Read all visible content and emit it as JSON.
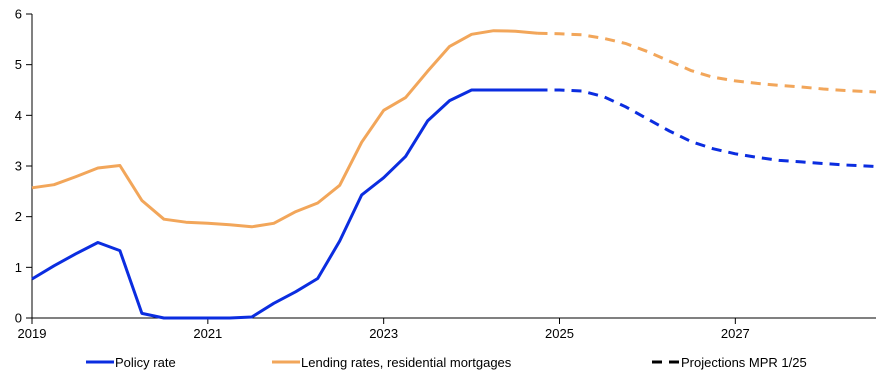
{
  "chart_data": {
    "type": "line",
    "title": "",
    "xlabel": "",
    "ylabel": "",
    "xlim": [
      2019.0,
      2028.6
    ],
    "ylim": [
      0,
      6
    ],
    "grid": false,
    "legend_position": "bottom",
    "x_ticks": [
      {
        "value": 2019,
        "label": "2019"
      },
      {
        "value": 2021,
        "label": "2021"
      },
      {
        "value": 2023,
        "label": "2023"
      },
      {
        "value": 2025,
        "label": "2025"
      },
      {
        "value": 2027,
        "label": "2027"
      }
    ],
    "y_ticks": [
      {
        "value": 0,
        "label": "0"
      },
      {
        "value": 1,
        "label": "1"
      },
      {
        "value": 2,
        "label": "2"
      },
      {
        "value": 3,
        "label": "3"
      },
      {
        "value": 4,
        "label": "4"
      },
      {
        "value": 5,
        "label": "5"
      },
      {
        "value": 6,
        "label": "6"
      }
    ],
    "series": [
      {
        "name": "Policy rate",
        "color": "#0b2de0",
        "style": "solid",
        "points": [
          [
            2019.0,
            0.77
          ],
          [
            2019.25,
            1.03
          ],
          [
            2019.5,
            1.27
          ],
          [
            2019.75,
            1.49
          ],
          [
            2020.0,
            1.33
          ],
          [
            2020.25,
            0.09
          ],
          [
            2020.5,
            0.0
          ],
          [
            2020.75,
            0.0
          ],
          [
            2021.0,
            0.0
          ],
          [
            2021.25,
            0.0
          ],
          [
            2021.5,
            0.02
          ],
          [
            2021.75,
            0.29
          ],
          [
            2022.0,
            0.52
          ],
          [
            2022.25,
            0.78
          ],
          [
            2022.5,
            1.52
          ],
          [
            2022.75,
            2.43
          ],
          [
            2023.0,
            2.77
          ],
          [
            2023.25,
            3.19
          ],
          [
            2023.5,
            3.89
          ],
          [
            2023.75,
            4.29
          ],
          [
            2024.0,
            4.5
          ],
          [
            2024.25,
            4.5
          ],
          [
            2024.5,
            4.5
          ],
          [
            2024.75,
            4.5
          ]
        ]
      },
      {
        "name": "Lending rates, residential mortgages",
        "color": "#f2a65a",
        "style": "solid",
        "points": [
          [
            2019.0,
            2.57
          ],
          [
            2019.25,
            2.63
          ],
          [
            2019.5,
            2.79
          ],
          [
            2019.75,
            2.96
          ],
          [
            2020.0,
            3.01
          ],
          [
            2020.25,
            2.32
          ],
          [
            2020.5,
            1.95
          ],
          [
            2020.75,
            1.89
          ],
          [
            2021.0,
            1.87
          ],
          [
            2021.25,
            1.84
          ],
          [
            2021.5,
            1.8
          ],
          [
            2021.75,
            1.87
          ],
          [
            2022.0,
            2.1
          ],
          [
            2022.25,
            2.27
          ],
          [
            2022.5,
            2.62
          ],
          [
            2022.75,
            3.47
          ],
          [
            2023.0,
            4.1
          ],
          [
            2023.25,
            4.35
          ],
          [
            2023.5,
            4.87
          ],
          [
            2023.75,
            5.36
          ],
          [
            2024.0,
            5.6
          ],
          [
            2024.25,
            5.67
          ],
          [
            2024.5,
            5.66
          ],
          [
            2024.75,
            5.62
          ]
        ]
      }
    ],
    "projections": [
      {
        "color": "#0b2de0",
        "style": "dashed",
        "points": [
          [
            2024.75,
            4.5
          ],
          [
            2025.0,
            4.5
          ],
          [
            2025.25,
            4.48
          ],
          [
            2025.5,
            4.37
          ],
          [
            2025.75,
            4.17
          ],
          [
            2026.0,
            3.93
          ],
          [
            2026.25,
            3.69
          ],
          [
            2026.5,
            3.48
          ],
          [
            2026.75,
            3.34
          ],
          [
            2027.0,
            3.24
          ],
          [
            2027.25,
            3.17
          ],
          [
            2027.5,
            3.11
          ],
          [
            2027.75,
            3.08
          ],
          [
            2028.0,
            3.05
          ],
          [
            2028.25,
            3.02
          ],
          [
            2028.6,
            2.99
          ]
        ]
      },
      {
        "color": "#f2a65a",
        "style": "dashed",
        "points": [
          [
            2024.75,
            5.62
          ],
          [
            2025.0,
            5.61
          ],
          [
            2025.25,
            5.59
          ],
          [
            2025.5,
            5.52
          ],
          [
            2025.75,
            5.42
          ],
          [
            2026.0,
            5.26
          ],
          [
            2026.25,
            5.07
          ],
          [
            2026.5,
            4.88
          ],
          [
            2026.75,
            4.75
          ],
          [
            2027.0,
            4.68
          ],
          [
            2027.25,
            4.63
          ],
          [
            2027.5,
            4.59
          ],
          [
            2027.75,
            4.56
          ],
          [
            2028.0,
            4.52
          ],
          [
            2028.25,
            4.49
          ],
          [
            2028.6,
            4.46
          ]
        ]
      }
    ],
    "legend": [
      {
        "label": "Policy rate",
        "color": "#0b2de0",
        "style": "solid"
      },
      {
        "label": "Lending rates, residential mortgages",
        "color": "#f2a65a",
        "style": "solid"
      },
      {
        "label": "Projections MPR 1/25",
        "color": "#000000",
        "style": "dashed"
      }
    ]
  }
}
